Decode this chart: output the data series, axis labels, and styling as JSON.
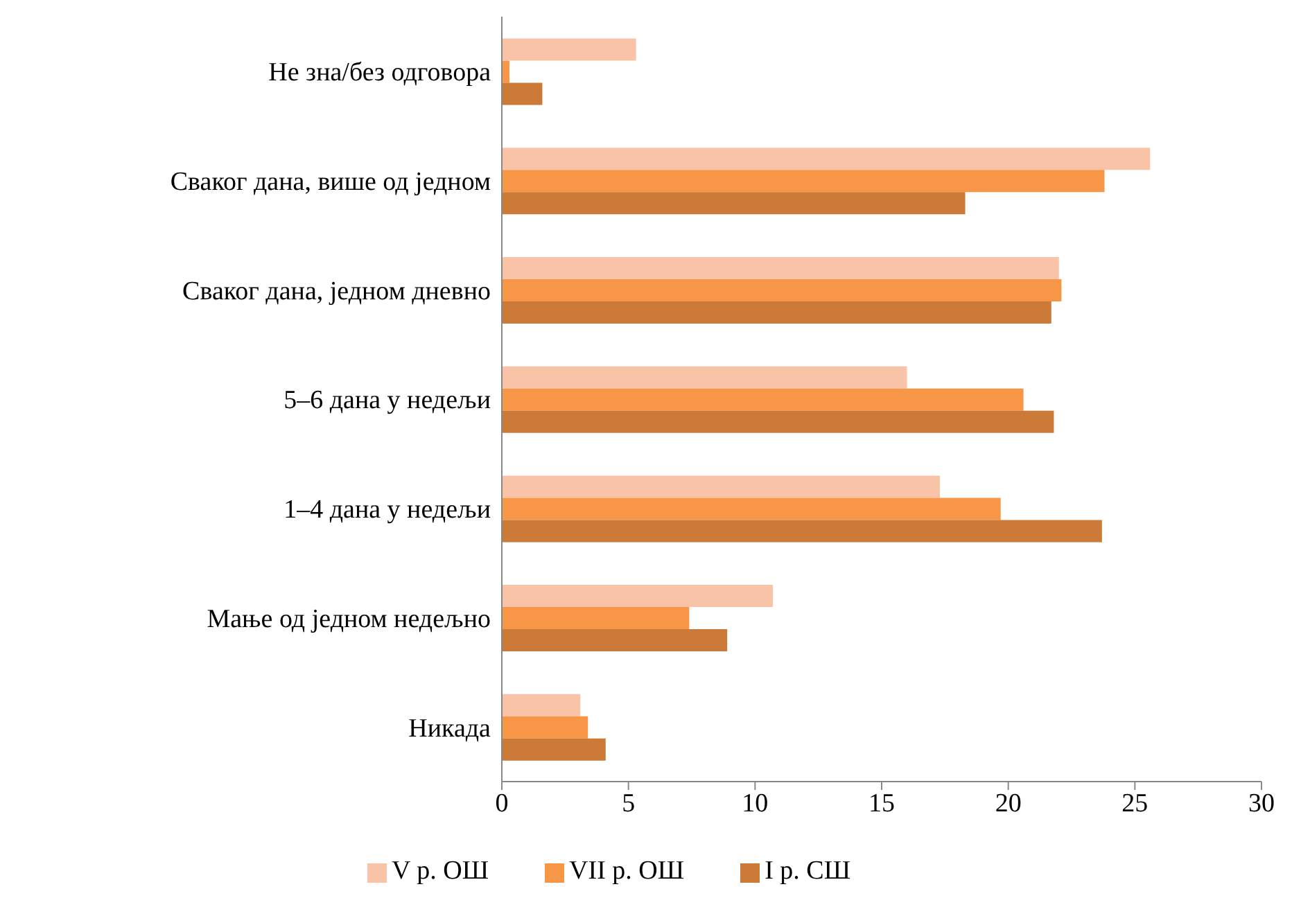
{
  "chart_data": {
    "type": "bar",
    "orientation": "horizontal",
    "categories": [
      "Не зна/без одговора",
      "Сваког дана, више од једном",
      "Сваког дана, једном дневно",
      "5–6 дана у недељи",
      "1–4 дана у недељи",
      "Мање од једном недељно",
      "Никада"
    ],
    "series": [
      {
        "name": "V р. ОШ",
        "color": "#f9c3a8",
        "values": [
          5.3,
          25.6,
          22.0,
          16.0,
          17.3,
          10.7,
          3.1
        ]
      },
      {
        "name": "VII р. ОШ",
        "color": "#f79646",
        "values": [
          0.3,
          23.8,
          22.1,
          20.6,
          19.7,
          7.4,
          3.4
        ]
      },
      {
        "name": "I р. СШ",
        "color": "#cc7a37",
        "values": [
          1.6,
          18.3,
          21.7,
          21.8,
          23.7,
          8.9,
          4.1
        ]
      }
    ],
    "xlim": [
      0,
      30
    ],
    "xticks": [
      0,
      5,
      10,
      15,
      20,
      25,
      30
    ],
    "grid": false,
    "legend": "bottom"
  }
}
